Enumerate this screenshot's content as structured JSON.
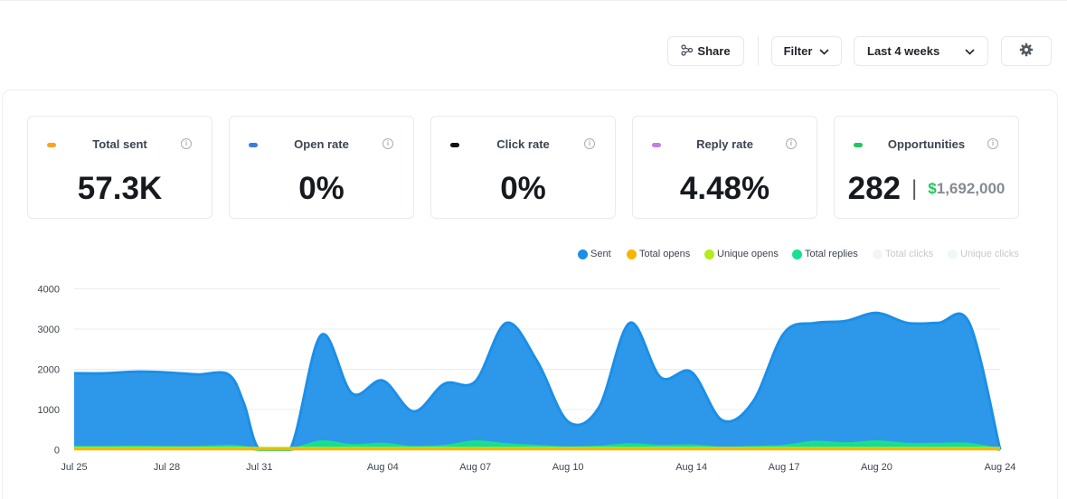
{
  "toolbar": {
    "share_label": "Share",
    "filter_label": "Filter",
    "range_label": "Last 4 weeks"
  },
  "stats": [
    {
      "label": "Total sent",
      "value": "57.3K",
      "color": "#f5a623"
    },
    {
      "label": "Open rate",
      "value": "0%",
      "color": "#3b7ddd"
    },
    {
      "label": "Click rate",
      "value": "0%",
      "color": "#111111"
    },
    {
      "label": "Reply rate",
      "value": "4.48%",
      "color": "#c27de8"
    },
    {
      "label": "Opportunities",
      "value": "282",
      "separator": "|",
      "currency": "$",
      "amount": "1,692,000",
      "color": "#22c55e"
    }
  ],
  "info_glyph": "i",
  "legend": [
    {
      "label": "Sent",
      "color": "#1b8fe8",
      "active": true
    },
    {
      "label": "Total opens",
      "color": "#f7b500",
      "active": true
    },
    {
      "label": "Unique opens",
      "color": "#b5ec1c",
      "active": true
    },
    {
      "label": "Total replies",
      "color": "#18e08f",
      "active": true
    },
    {
      "label": "Total clicks",
      "color": "#e6ecf0",
      "active": false
    },
    {
      "label": "Unique clicks",
      "color": "#e6f4ec",
      "active": false
    }
  ],
  "chart_data": {
    "type": "area",
    "x_ticks": [
      "Jul 25",
      "Jul 28",
      "Jul 31",
      "Aug 04",
      "Aug 07",
      "Aug 10",
      "Aug 14",
      "Aug 17",
      "Aug 20",
      "Aug 24"
    ],
    "y_ticks": [
      "0",
      "1000",
      "2000",
      "3000",
      "4000"
    ],
    "ylim": [
      0,
      4000
    ],
    "grid": true,
    "legend_position": "top-right",
    "series": [
      {
        "name": "Sent",
        "color": "#1b8fe8",
        "points": [
          [
            "Jul 25",
            1900
          ],
          [
            "Jul 26",
            1900
          ],
          [
            "Jul 27",
            1940
          ],
          [
            "Jul 28",
            1920
          ],
          [
            "Jul 29",
            1870
          ],
          [
            "Jul 30",
            1870
          ],
          [
            "Jul 30 12:00",
            1150
          ],
          [
            "Jul 31",
            10
          ],
          [
            "Aug 01",
            10
          ],
          [
            "Aug 02",
            2850
          ],
          [
            "Aug 03",
            1400
          ],
          [
            "Aug 04",
            1720
          ],
          [
            "Aug 05",
            950
          ],
          [
            "Aug 06",
            1640
          ],
          [
            "Aug 07",
            1700
          ],
          [
            "Aug 08",
            3150
          ],
          [
            "Aug 09",
            2200
          ],
          [
            "Aug 10",
            700
          ],
          [
            "Aug 11",
            1050
          ],
          [
            "Aug 12",
            3150
          ],
          [
            "Aug 13",
            1800
          ],
          [
            "Aug 14",
            1930
          ],
          [
            "Aug 15",
            730
          ],
          [
            "Aug 16",
            1200
          ],
          [
            "Aug 17",
            2900
          ],
          [
            "Aug 18",
            3150
          ],
          [
            "Aug 19",
            3200
          ],
          [
            "Aug 20",
            3400
          ],
          [
            "Aug 21",
            3150
          ],
          [
            "Aug 22",
            3150
          ],
          [
            "Aug 23",
            3150
          ],
          [
            "Aug 24",
            0
          ]
        ]
      },
      {
        "name": "Total replies",
        "color": "#18e08f",
        "points": [
          [
            "Jul 25",
            60
          ],
          [
            "Jul 26",
            60
          ],
          [
            "Jul 27",
            70
          ],
          [
            "Jul 28",
            60
          ],
          [
            "Jul 29",
            60
          ],
          [
            "Jul 30",
            90
          ],
          [
            "Jul 30 12:00",
            60
          ],
          [
            "Jul 31",
            0
          ],
          [
            "Aug 01",
            0
          ],
          [
            "Aug 02",
            200
          ],
          [
            "Aug 03",
            110
          ],
          [
            "Aug 04",
            140
          ],
          [
            "Aug 05",
            60
          ],
          [
            "Aug 06",
            90
          ],
          [
            "Aug 07",
            200
          ],
          [
            "Aug 08",
            130
          ],
          [
            "Aug 09",
            90
          ],
          [
            "Aug 10",
            50
          ],
          [
            "Aug 11",
            70
          ],
          [
            "Aug 12",
            130
          ],
          [
            "Aug 13",
            90
          ],
          [
            "Aug 14",
            100
          ],
          [
            "Aug 15",
            40
          ],
          [
            "Aug 16",
            60
          ],
          [
            "Aug 17",
            90
          ],
          [
            "Aug 18",
            190
          ],
          [
            "Aug 19",
            150
          ],
          [
            "Aug 20",
            200
          ],
          [
            "Aug 21",
            140
          ],
          [
            "Aug 22",
            140
          ],
          [
            "Aug 23",
            140
          ],
          [
            "Aug 24",
            0
          ]
        ]
      },
      {
        "name": "Unique opens",
        "color": "#b5ec1c",
        "points": [
          [
            "Jul 25",
            40
          ],
          [
            "Jul 31",
            40
          ],
          [
            "Aug 01",
            40
          ],
          [
            "Aug 24",
            40
          ]
        ]
      },
      {
        "name": "Total opens",
        "color": "#f7b500",
        "points": [
          [
            "Jul 25",
            15
          ],
          [
            "Aug 24",
            15
          ]
        ]
      }
    ]
  }
}
